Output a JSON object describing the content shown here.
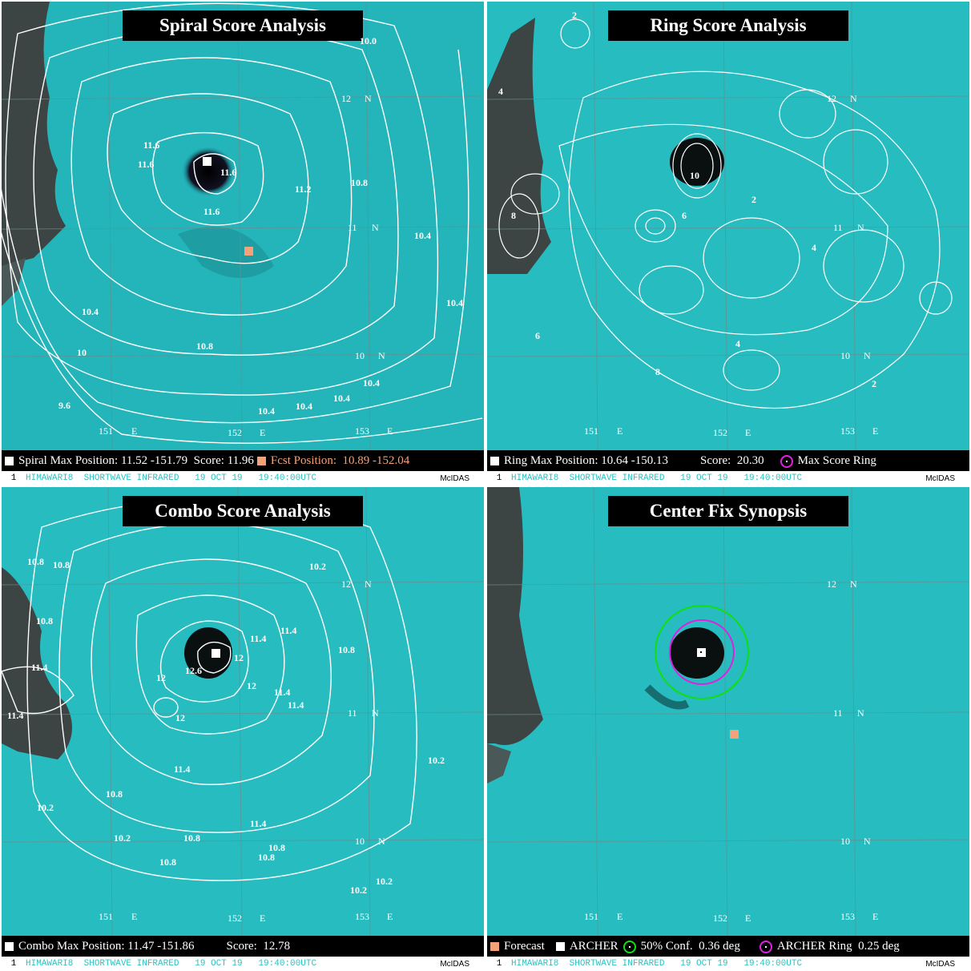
{
  "panels": [
    {
      "title": "Spiral Score Analysis",
      "legend": {
        "label": "Spiral Max Position:",
        "position": "11.52 -151.79",
        "score_label": "Score:",
        "score": "11.96",
        "fcst_label": "Fcst Position:",
        "fcst_position": "10.89 -152.04"
      },
      "contour_labels": [
        "11.6",
        "11.6",
        "11.6",
        "11.6",
        "11.2",
        "10.8",
        "10.4",
        "10.4",
        "10.4",
        "10.4",
        "10.4",
        "10.4",
        "10.4",
        "10.8",
        "10",
        "9.6",
        "10.0"
      ]
    },
    {
      "title": "Ring Score Analysis",
      "legend": {
        "label": "Ring Max Position:",
        "position": "10.64 -150.13",
        "score_label": "Score:",
        "score": "20.30",
        "ring_label": "Max Score Ring"
      },
      "contour_labels": [
        "2",
        "4",
        "6",
        "8",
        "10"
      ]
    },
    {
      "title": "Combo Score Analysis",
      "legend": {
        "label": "Combo Max Position:",
        "position": "11.47 -151.86",
        "score_label": "Score:",
        "score": "12.78"
      },
      "contour_labels": [
        "10.8",
        "10.8",
        "10.8",
        "11.4",
        "11.4",
        "11.4",
        "11.4",
        "11.4",
        "11.4",
        "12",
        "12",
        "12",
        "12",
        "12.6",
        "10.2",
        "10.2",
        "10.2",
        "10.2",
        "10.8",
        "10.8",
        "10.8",
        "10.8",
        "10.2",
        "10.2",
        "10.8",
        "10.8"
      ]
    },
    {
      "title": "Center Fix Synopsis",
      "legend": {
        "forecast": "Forecast",
        "archer": "ARCHER",
        "conf_label": "50% Conf.",
        "conf_value": "0.36 deg",
        "ring_label": "ARCHER Ring",
        "ring_value": "0.25 deg"
      }
    }
  ],
  "grid_labels": {
    "lat12": "12",
    "lat11": "11",
    "lat10": "10",
    "north": "N",
    "lon151": "151",
    "lon152": "152",
    "lon153": "153",
    "east": "E"
  },
  "footer": {
    "index": "1",
    "text": "HIMAWARI8  SHORTWAVE INFRARED   19 OCT 19   19:40:00UTC",
    "brand": "McIDAS"
  },
  "colors": {
    "sea": "#24c0c4",
    "cloud": "#3a4a4a",
    "contour": "#ffffff",
    "forecast": "#f4a27a",
    "ring": "#e020e0",
    "conf": "#10e010"
  }
}
